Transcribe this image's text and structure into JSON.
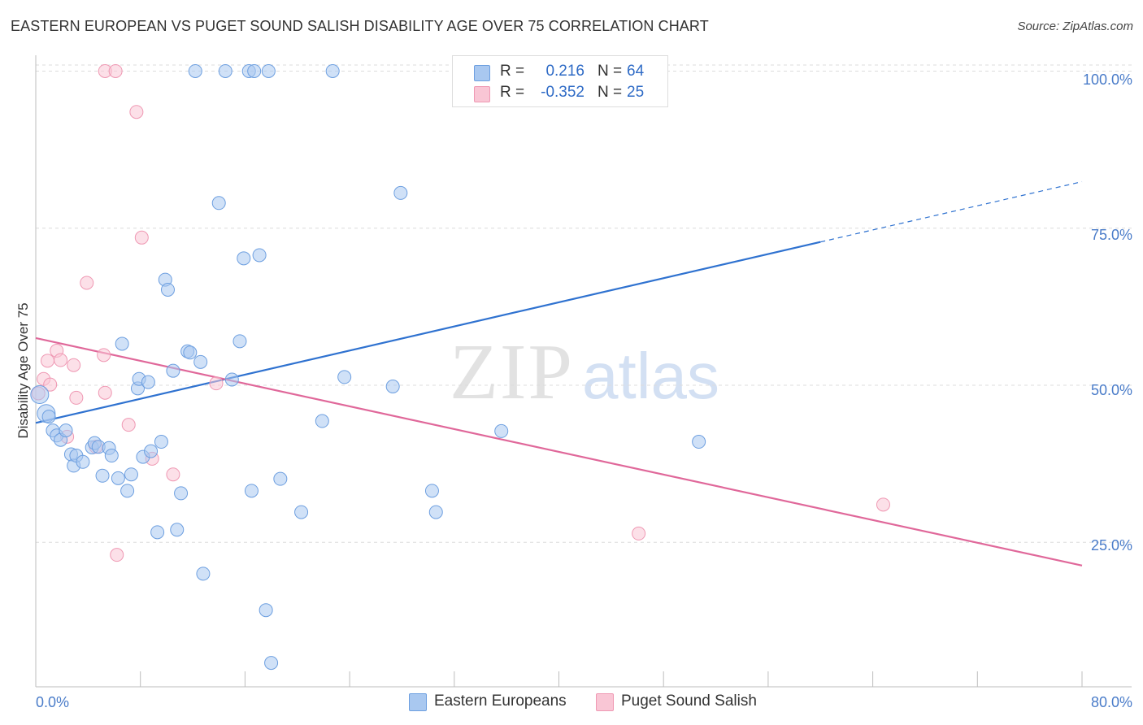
{
  "header": {
    "title": "EASTERN EUROPEAN VS PUGET SOUND SALISH DISABILITY AGE OVER 75 CORRELATION CHART",
    "source": "Source: ZipAtlas.com"
  },
  "watermark": {
    "zip": "ZIP",
    "atlas": "atlas"
  },
  "legend_top": {
    "rows": [
      {
        "r_label": "R =",
        "r_value": "0.216",
        "n_label": "N =",
        "n_value": "64",
        "color": "#a9c8f0"
      },
      {
        "r_label": "R =",
        "r_value": "-0.352",
        "n_label": "N =",
        "n_value": "25",
        "color": "#f7bfd0"
      }
    ]
  },
  "legend_bottom": {
    "items": [
      {
        "label": "Eastern Europeans",
        "color": "#a9c8f0"
      },
      {
        "label": "Puget Sound Salish",
        "color": "#f7bfd0"
      }
    ]
  },
  "colors": {
    "blue_fill": "#a9c8f0",
    "blue_stroke": "#6d9fe0",
    "blue_line": "#2f72d0",
    "pink_fill": "#f9c6d5",
    "pink_stroke": "#ef98b3",
    "pink_line": "#e0689a",
    "axis_label": "#4a7cc9"
  },
  "chart_data": {
    "type": "scatter",
    "title": "EASTERN EUROPEAN VS PUGET SOUND SALISH DISABILITY AGE OVER 75 CORRELATION CHART",
    "xlabel": "",
    "ylabel": "Disability Age Over 75",
    "xlim": [
      0,
      80
    ],
    "ylim": [
      2,
      102
    ],
    "x_tick_labels": [
      "0.0%",
      "80.0%"
    ],
    "y_ticks": [
      25,
      50,
      75,
      100
    ],
    "y_tick_labels": [
      "25.0%",
      "50.0%",
      "75.0%",
      "100.0%"
    ],
    "grid": true,
    "legend_position": "top-center",
    "series": [
      {
        "name": "Eastern Europeans",
        "r": 0.216,
        "n": 64,
        "trend": {
          "x": [
            0,
            60
          ],
          "y": [
            44,
            72.8
          ],
          "dashed_to": [
            80,
            82.4
          ]
        },
        "points": [
          [
            0.3,
            48.5
          ],
          [
            0.8,
            45.5
          ],
          [
            1.0,
            45.0
          ],
          [
            1.3,
            42.8
          ],
          [
            1.6,
            42.0
          ],
          [
            1.9,
            41.3
          ],
          [
            2.3,
            42.8
          ],
          [
            2.7,
            39.0
          ],
          [
            2.9,
            37.2
          ],
          [
            3.1,
            38.8
          ],
          [
            3.6,
            37.8
          ],
          [
            4.3,
            40.1
          ],
          [
            4.5,
            40.8
          ],
          [
            4.8,
            40.2
          ],
          [
            5.1,
            35.6
          ],
          [
            5.6,
            40.0
          ],
          [
            5.8,
            38.8
          ],
          [
            6.3,
            35.2
          ],
          [
            6.6,
            56.6
          ],
          [
            7.0,
            33.2
          ],
          [
            7.3,
            35.8
          ],
          [
            7.8,
            49.5
          ],
          [
            7.9,
            51.0
          ],
          [
            8.2,
            38.6
          ],
          [
            8.6,
            50.5
          ],
          [
            8.8,
            39.5
          ],
          [
            9.3,
            26.6
          ],
          [
            9.6,
            41.0
          ],
          [
            9.9,
            66.8
          ],
          [
            10.1,
            65.2
          ],
          [
            10.5,
            52.3
          ],
          [
            10.8,
            27.0
          ],
          [
            11.1,
            32.8
          ],
          [
            11.6,
            55.4
          ],
          [
            11.8,
            55.2
          ],
          [
            12.2,
            100.0
          ],
          [
            12.6,
            53.7
          ],
          [
            12.8,
            20.0
          ],
          [
            14.0,
            79.0
          ],
          [
            14.5,
            100.0
          ],
          [
            15.0,
            50.9
          ],
          [
            15.6,
            57.0
          ],
          [
            15.9,
            70.2
          ],
          [
            16.3,
            100.0
          ],
          [
            16.5,
            33.2
          ],
          [
            16.7,
            100.0
          ],
          [
            17.1,
            70.7
          ],
          [
            17.6,
            14.2
          ],
          [
            17.8,
            100.0
          ],
          [
            18.0,
            5.8
          ],
          [
            18.7,
            35.1
          ],
          [
            20.3,
            29.8
          ],
          [
            21.9,
            44.3
          ],
          [
            22.7,
            100.0
          ],
          [
            23.6,
            51.3
          ],
          [
            27.3,
            49.8
          ],
          [
            27.9,
            80.6
          ],
          [
            30.3,
            33.2
          ],
          [
            30.6,
            29.8
          ],
          [
            35.6,
            42.7
          ],
          [
            50.7,
            41.0
          ]
        ]
      },
      {
        "name": "Puget Sound Salish",
        "r": -0.352,
        "n": 25,
        "trend": {
          "x": [
            0,
            80
          ],
          "y": [
            57.5,
            21.3
          ]
        },
        "points": [
          [
            0.2,
            48.7
          ],
          [
            0.6,
            51.0
          ],
          [
            0.9,
            53.9
          ],
          [
            1.1,
            50.1
          ],
          [
            1.6,
            55.5
          ],
          [
            1.9,
            54.0
          ],
          [
            2.4,
            41.8
          ],
          [
            2.9,
            53.2
          ],
          [
            3.1,
            48.0
          ],
          [
            4.6,
            40.2
          ],
          [
            5.3,
            100.0
          ],
          [
            5.2,
            54.8
          ],
          [
            5.3,
            48.8
          ],
          [
            6.1,
            100.0
          ],
          [
            6.2,
            23.0
          ],
          [
            7.1,
            43.7
          ],
          [
            7.7,
            93.5
          ],
          [
            8.1,
            73.5
          ],
          [
            8.9,
            38.3
          ],
          [
            10.5,
            35.8
          ],
          [
            13.8,
            50.3
          ],
          [
            3.9,
            66.3
          ],
          [
            46.1,
            26.4
          ],
          [
            64.8,
            31.0
          ]
        ]
      }
    ]
  }
}
